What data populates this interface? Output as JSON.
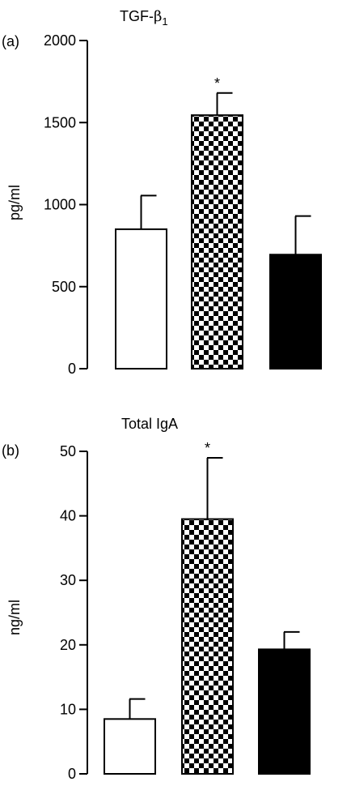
{
  "chart_data": [
    {
      "type": "bar",
      "panel_label": "(a)",
      "title": "TGF-",
      "title_symbol": "β",
      "title_subscript": "1",
      "ylabel": "pg/ml",
      "ylim": [
        0,
        2000
      ],
      "yticks": [
        "0",
        "500",
        "1000",
        "1500",
        "2000"
      ],
      "ytick_values": [
        0,
        500,
        1000,
        1500,
        2000
      ],
      "values": [
        850,
        1545,
        695
      ],
      "errors": [
        205,
        135,
        235
      ],
      "fills": [
        "white",
        "checker",
        "black"
      ],
      "annotations": [
        "",
        "*",
        ""
      ]
    },
    {
      "type": "bar",
      "panel_label": "(b)",
      "title": "Total IgA",
      "ylabel": "ng/ml",
      "ylim": [
        0,
        50
      ],
      "yticks": [
        "0",
        "10",
        "20",
        "30",
        "40",
        "50"
      ],
      "ytick_values": [
        0,
        10,
        20,
        30,
        40,
        50
      ],
      "values": [
        8.5,
        39.5,
        19.3
      ],
      "errors": [
        3.1,
        9.5,
        2.7
      ],
      "fills": [
        "white",
        "checker",
        "black"
      ],
      "annotations": [
        "",
        "*",
        ""
      ]
    }
  ]
}
